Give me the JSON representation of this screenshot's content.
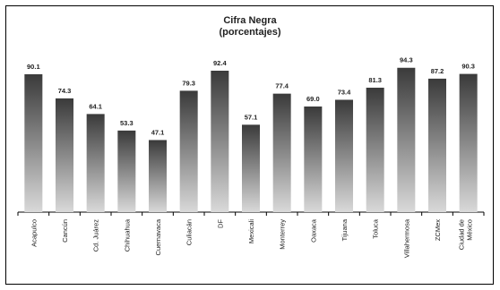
{
  "chart_data": {
    "type": "bar",
    "title": "Cifra Negra",
    "subtitle": "(porcentajes)",
    "xlabel": "",
    "ylabel": "",
    "ylim": [
      0,
      100
    ],
    "grid": false,
    "legend": "none",
    "categories": [
      "Acapulco",
      "Cancún",
      "Cd. Juárez",
      "Chihuahua",
      "Cuernavaca",
      "Culiacán",
      "DF",
      "Mexicali",
      "Monterrey",
      "Oaxaca",
      "Tijuana",
      "Toluca",
      "Villahermosa",
      "ZCMex",
      "Ciudad de México"
    ],
    "values": [
      90.1,
      74.3,
      64.1,
      53.3,
      47.1,
      79.3,
      92.4,
      57.1,
      77.4,
      69.0,
      73.4,
      81.3,
      94.3,
      87.2,
      90.3
    ],
    "value_labels": [
      "90.1",
      "74.3",
      "64.1",
      "53.3",
      "47.1",
      "79.3",
      "92.4",
      "57.1",
      "77.4",
      "69.0",
      "73.4",
      "81.3",
      "94.3",
      "87.2",
      "90.3"
    ],
    "colors": {
      "bar_top": "#3a3a3a",
      "bar_bottom": "#d9d9d9",
      "axis": "#000000",
      "frame": "#000000"
    }
  }
}
